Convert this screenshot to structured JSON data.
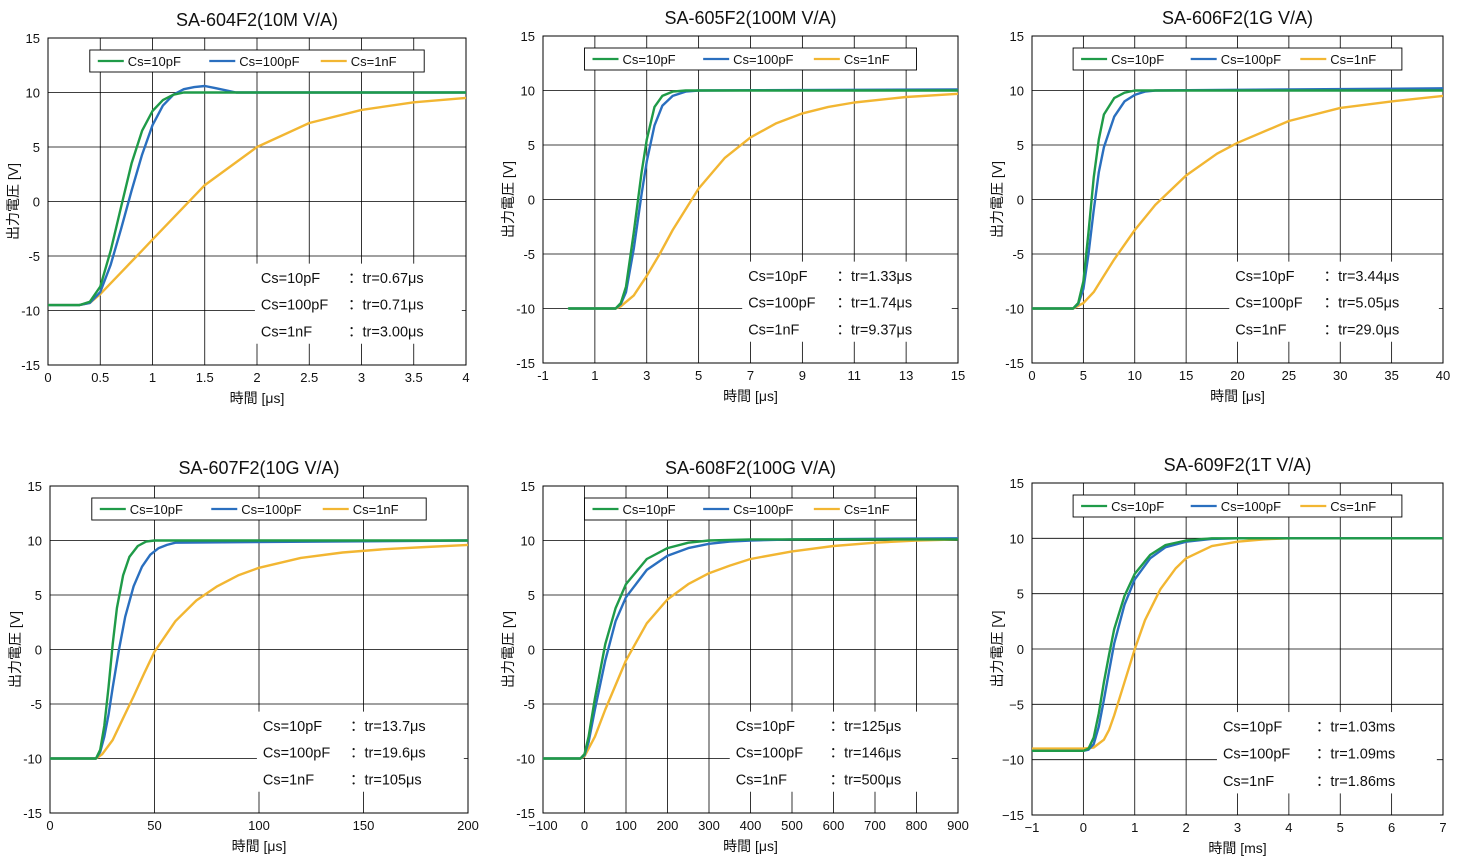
{
  "colors": {
    "cs10": "#1f9b48",
    "cs100": "#2a6fbf",
    "cs1n": "#f2b632",
    "grid": "#000000"
  },
  "ylabel": "出力電圧 [V]",
  "legend": [
    "Cs=10pF",
    "Cs=100pF",
    "Cs=1nF"
  ],
  "charts": [
    {
      "id": "sa604",
      "title": "SA-604F2(10M V/A)",
      "xlabel": "時間 [μs]",
      "xlim": [
        0,
        4
      ],
      "ylim": [
        -15,
        15
      ],
      "xticks": [
        0,
        0.5,
        1,
        1.5,
        2,
        2.5,
        3,
        3.5,
        4
      ],
      "xtick_labels": [
        "0",
        "0.5",
        "1",
        "1.5",
        "2",
        "2.5",
        "3",
        "3.5",
        "4"
      ],
      "yticks": [
        -15,
        -10,
        -5,
        0,
        5,
        10,
        15
      ],
      "ytick_labels": [
        "-15",
        "-10",
        "-5",
        "0",
        "5",
        "10",
        "15"
      ],
      "annotation_rows": [
        {
          "cs": "Cs=10pF",
          "tr": "：tr=0.67μs"
        },
        {
          "cs": "Cs=100pF",
          "tr": "：tr=0.71μs"
        },
        {
          "cs": "Cs=1nF",
          "tr": "：tr=3.00μs"
        }
      ],
      "series": [
        {
          "name": "Cs=10pF",
          "x": [
            0,
            0.3,
            0.4,
            0.5,
            0.6,
            0.7,
            0.8,
            0.9,
            1.0,
            1.1,
            1.2,
            1.3,
            1.5,
            2.0,
            4.0
          ],
          "y": [
            -9.5,
            -9.5,
            -9.2,
            -7.8,
            -4.5,
            -0.5,
            3.5,
            6.5,
            8.3,
            9.3,
            9.8,
            10.0,
            10.0,
            10.0,
            10.0
          ]
        },
        {
          "name": "Cs=100pF",
          "x": [
            0,
            0.3,
            0.4,
            0.5,
            0.6,
            0.7,
            0.8,
            0.9,
            1.0,
            1.1,
            1.2,
            1.3,
            1.4,
            1.5,
            1.6,
            1.7,
            1.8,
            2.0,
            4.0
          ],
          "y": [
            -9.5,
            -9.5,
            -9.3,
            -8.3,
            -5.8,
            -2.5,
            1.0,
            4.3,
            7.0,
            8.8,
            9.8,
            10.3,
            10.5,
            10.6,
            10.4,
            10.2,
            10.0,
            10.0,
            10.0
          ]
        },
        {
          "name": "Cs=1nF",
          "x": [
            0,
            0.3,
            0.4,
            0.5,
            0.7,
            0.9,
            1.0,
            1.2,
            1.5,
            2.0,
            2.5,
            3.0,
            3.5,
            4.0
          ],
          "y": [
            -9.5,
            -9.5,
            -9.3,
            -8.5,
            -6.5,
            -4.5,
            -3.5,
            -1.5,
            1.5,
            5.0,
            7.2,
            8.4,
            9.1,
            9.5
          ]
        }
      ]
    },
    {
      "id": "sa605",
      "title": "SA-605F2(100M V/A)",
      "xlabel": "時間 [μs]",
      "xlim": [
        -1,
        15
      ],
      "ylim": [
        -15,
        15
      ],
      "xticks": [
        -1,
        1,
        3,
        5,
        7,
        9,
        11,
        13,
        15
      ],
      "xtick_labels": [
        "-1",
        "1",
        "3",
        "5",
        "7",
        "9",
        "11",
        "13",
        "15"
      ],
      "yticks": [
        -15,
        -10,
        -5,
        0,
        5,
        10,
        15
      ],
      "ytick_labels": [
        "-15",
        "-10",
        "-5",
        "0",
        "5",
        "10",
        "15"
      ],
      "annotation_rows": [
        {
          "cs": "Cs=10pF",
          "tr": "：tr=1.33μs"
        },
        {
          "cs": "Cs=100pF",
          "tr": "：tr=1.74μs"
        },
        {
          "cs": "Cs=1nF",
          "tr": "：tr=9.37μs"
        }
      ],
      "series": [
        {
          "name": "Cs=10pF",
          "x": [
            0,
            1.8,
            2.0,
            2.2,
            2.5,
            2.8,
            3.0,
            3.3,
            3.6,
            4.0,
            4.5,
            15
          ],
          "y": [
            -10,
            -10,
            -9.5,
            -8.0,
            -3.0,
            2.5,
            5.5,
            8.5,
            9.5,
            9.9,
            10.0,
            10.0
          ]
        },
        {
          "name": "Cs=100pF",
          "x": [
            0,
            1.8,
            2.0,
            2.2,
            2.5,
            2.8,
            3.0,
            3.3,
            3.6,
            4.0,
            4.5,
            5.0,
            15
          ],
          "y": [
            -10,
            -10,
            -9.6,
            -8.5,
            -4.5,
            0.5,
            3.5,
            6.8,
            8.6,
            9.5,
            9.9,
            10.0,
            10.1
          ]
        },
        {
          "name": "Cs=1nF",
          "x": [
            0,
            1.8,
            2.0,
            2.5,
            3.0,
            3.5,
            4.0,
            5.0,
            6.0,
            7.0,
            8.0,
            9.0,
            10.0,
            11.0,
            13.0,
            15.0
          ],
          "y": [
            -10,
            -10,
            -9.8,
            -8.8,
            -7.0,
            -5.0,
            -2.8,
            1.0,
            3.8,
            5.7,
            7.0,
            7.9,
            8.5,
            8.9,
            9.4,
            9.7
          ]
        }
      ]
    },
    {
      "id": "sa606",
      "title": "SA-606F2(1G V/A)",
      "xlabel": "時間 [μs]",
      "xlim": [
        0,
        40
      ],
      "ylim": [
        -15,
        15
      ],
      "xticks": [
        0,
        5,
        10,
        15,
        20,
        25,
        30,
        35,
        40
      ],
      "xtick_labels": [
        "0",
        "5",
        "10",
        "15",
        "20",
        "25",
        "30",
        "35",
        "40"
      ],
      "yticks": [
        -15,
        -10,
        -5,
        0,
        5,
        10,
        15
      ],
      "ytick_labels": [
        "-15",
        "-10",
        "-5",
        "0",
        "5",
        "10",
        "15"
      ],
      "annotation_rows": [
        {
          "cs": "Cs=10pF",
          "tr": "：tr=3.44μs"
        },
        {
          "cs": "Cs=100pF",
          "tr": "：tr=5.05μs"
        },
        {
          "cs": "Cs=1nF",
          "tr": "：tr=29.0μs"
        }
      ],
      "series": [
        {
          "name": "Cs=10pF",
          "x": [
            0,
            4.0,
            4.5,
            5.0,
            5.5,
            6.0,
            6.5,
            7.0,
            8.0,
            9.0,
            10.0,
            40
          ],
          "y": [
            -10,
            -10,
            -9.5,
            -7.5,
            -3.0,
            2.0,
            5.5,
            7.8,
            9.3,
            9.8,
            10.0,
            10.0
          ]
        },
        {
          "name": "Cs=100pF",
          "x": [
            0,
            4.0,
            4.5,
            5.0,
            5.5,
            6.0,
            6.5,
            7.0,
            8.0,
            9.0,
            10.0,
            11.0,
            12.0,
            40
          ],
          "y": [
            -10,
            -10,
            -9.6,
            -8.2,
            -5.0,
            -1.0,
            2.5,
            4.8,
            7.6,
            9.0,
            9.6,
            9.9,
            10.0,
            10.2
          ]
        },
        {
          "name": "Cs=1nF",
          "x": [
            0,
            4.0,
            5.0,
            6.0,
            7.0,
            8.0,
            10.0,
            12.0,
            15.0,
            18.0,
            20.0,
            25.0,
            30.0,
            35.0,
            40.0
          ],
          "y": [
            -10,
            -10,
            -9.5,
            -8.5,
            -7.0,
            -5.5,
            -2.8,
            -0.5,
            2.2,
            4.2,
            5.2,
            7.2,
            8.4,
            9.0,
            9.5
          ]
        }
      ]
    },
    {
      "id": "sa607",
      "title": "SA-607F2(10G V/A)",
      "xlabel": "時間 [μs]",
      "xlim": [
        0,
        200
      ],
      "ylim": [
        -15,
        15
      ],
      "xticks": [
        0,
        50,
        100,
        150,
        200
      ],
      "xtick_labels": [
        "0",
        "50",
        "100",
        "150",
        "200"
      ],
      "yticks": [
        -15,
        -10,
        -5,
        0,
        5,
        10,
        15
      ],
      "ytick_labels": [
        "-15",
        "-10",
        "-5",
        "0",
        "5",
        "10",
        "15"
      ],
      "annotation_rows": [
        {
          "cs": "Cs=10pF",
          "tr": "：tr=13.7μs"
        },
        {
          "cs": "Cs=100pF",
          "tr": "：tr=19.6μs"
        },
        {
          "cs": "Cs=1nF",
          "tr": "：tr=105μs"
        }
      ],
      "series": [
        {
          "name": "Cs=10pF",
          "x": [
            0,
            22,
            24,
            26,
            28,
            30,
            32,
            35,
            38,
            42,
            46,
            50,
            200
          ],
          "y": [
            -10,
            -10,
            -9.2,
            -7.0,
            -3.5,
            0.5,
            3.8,
            6.8,
            8.5,
            9.5,
            9.9,
            10.0,
            10.0
          ]
        },
        {
          "name": "Cs=100pF",
          "x": [
            0,
            22,
            24,
            26,
            28,
            30,
            33,
            36,
            40,
            44,
            48,
            52,
            56,
            60,
            200
          ],
          "y": [
            -10,
            -10,
            -9.4,
            -8.0,
            -6.0,
            -3.5,
            0.0,
            3.0,
            5.8,
            7.6,
            8.7,
            9.3,
            9.6,
            9.8,
            10.0
          ]
        },
        {
          "name": "Cs=1nF",
          "x": [
            0,
            22,
            25,
            30,
            35,
            40,
            45,
            50,
            60,
            70,
            80,
            90,
            100,
            120,
            140,
            160,
            180,
            200
          ],
          "y": [
            -10,
            -10,
            -9.6,
            -8.3,
            -6.3,
            -4.3,
            -2.2,
            -0.2,
            2.6,
            4.5,
            5.8,
            6.8,
            7.5,
            8.4,
            8.9,
            9.2,
            9.4,
            9.6
          ]
        }
      ]
    },
    {
      "id": "sa608",
      "title": "SA-608F2(100G V/A)",
      "xlabel": "時間 [μs]",
      "xlim": [
        -100,
        900
      ],
      "ylim": [
        -15,
        15
      ],
      "xticks": [
        -100,
        0,
        100,
        200,
        300,
        400,
        500,
        600,
        700,
        800,
        900
      ],
      "xtick_labels": [
        "−100",
        "0",
        "100",
        "200",
        "300",
        "400",
        "500",
        "600",
        "700",
        "800",
        "900"
      ],
      "yticks": [
        -15,
        -10,
        -5,
        0,
        5,
        10,
        15
      ],
      "ytick_labels": [
        "-15",
        "-10",
        "-5",
        "0",
        "5",
        "10",
        "15"
      ],
      "annotation_rows": [
        {
          "cs": "Cs=10pF",
          "tr": "：tr=125μs"
        },
        {
          "cs": "Cs=100pF",
          "tr": "：tr=146μs"
        },
        {
          "cs": "Cs=1nF",
          "tr": "：tr=500μs"
        }
      ],
      "series": [
        {
          "name": "Cs=10pF",
          "x": [
            -100,
            -10,
            0,
            10,
            25,
            50,
            75,
            100,
            150,
            200,
            250,
            300,
            400,
            900
          ],
          "y": [
            -10,
            -10,
            -9.6,
            -8.0,
            -4.5,
            0.5,
            3.8,
            6.0,
            8.3,
            9.3,
            9.8,
            10.0,
            10.1,
            10.1
          ]
        },
        {
          "name": "Cs=100pF",
          "x": [
            -100,
            -10,
            0,
            10,
            25,
            50,
            75,
            100,
            150,
            200,
            250,
            300,
            350,
            400,
            500,
            900
          ],
          "y": [
            -10,
            -10,
            -9.7,
            -8.5,
            -5.5,
            -1.0,
            2.6,
            4.8,
            7.3,
            8.6,
            9.3,
            9.7,
            9.9,
            10.0,
            10.1,
            10.2
          ]
        },
        {
          "name": "Cs=1nF",
          "x": [
            -100,
            -10,
            0,
            25,
            50,
            100,
            150,
            200,
            250,
            300,
            350,
            400,
            500,
            600,
            700,
            800,
            900
          ],
          "y": [
            -10,
            -10,
            -9.8,
            -8.0,
            -5.5,
            -1.0,
            2.4,
            4.6,
            6.0,
            7.0,
            7.7,
            8.3,
            9.0,
            9.5,
            9.8,
            10.0,
            10.1
          ]
        }
      ]
    },
    {
      "id": "sa609",
      "title": "SA-609F2(1T V/A)",
      "xlabel": "時間 [ms]",
      "xlim": [
        -1,
        7
      ],
      "ylim": [
        -15,
        15
      ],
      "xticks": [
        -1,
        0,
        1,
        2,
        3,
        4,
        5,
        6,
        7
      ],
      "xtick_labels": [
        "−1",
        "0",
        "1",
        "2",
        "3",
        "4",
        "5",
        "6",
        "7"
      ],
      "yticks": [
        -15,
        -10,
        -5,
        0,
        5,
        10,
        15
      ],
      "ytick_labels": [
        "−15",
        "−10",
        "−5",
        "0",
        "5",
        "10",
        "15"
      ],
      "annotation_rows": [
        {
          "cs": "Cs=10pF",
          "tr": "：tr=1.03ms"
        },
        {
          "cs": "Cs=100pF",
          "tr": "：tr=1.09ms"
        },
        {
          "cs": "Cs=1nF",
          "tr": "：tr=1.86ms"
        }
      ],
      "series": [
        {
          "name": "Cs=10pF",
          "x": [
            -1,
            -0.8,
            0,
            0.1,
            0.2,
            0.3,
            0.4,
            0.5,
            0.6,
            0.8,
            1.0,
            1.3,
            1.6,
            2.0,
            2.5,
            3.0,
            7.0
          ],
          "y": [
            -9.2,
            -9.2,
            -9.2,
            -9.0,
            -8.0,
            -5.8,
            -3.0,
            -0.5,
            1.8,
            4.8,
            6.8,
            8.5,
            9.4,
            9.8,
            10.0,
            10.0,
            10.0
          ]
        },
        {
          "name": "Cs=100pF",
          "x": [
            -1,
            -0.8,
            0,
            0.1,
            0.2,
            0.3,
            0.4,
            0.5,
            0.6,
            0.8,
            1.0,
            1.3,
            1.6,
            2.0,
            2.5,
            3.0,
            7.0
          ],
          "y": [
            -9.2,
            -9.2,
            -9.2,
            -9.1,
            -8.6,
            -7.0,
            -4.6,
            -2.0,
            0.5,
            4.0,
            6.3,
            8.2,
            9.2,
            9.7,
            9.95,
            10.0,
            10.0
          ]
        },
        {
          "name": "Cs=1nF",
          "x": [
            -1,
            -0.8,
            0,
            0.2,
            0.4,
            0.5,
            0.6,
            0.8,
            1.0,
            1.2,
            1.5,
            1.8,
            2.0,
            2.5,
            3.0,
            3.5,
            4.0,
            7.0
          ],
          "y": [
            -9.0,
            -9.0,
            -9.0,
            -8.9,
            -8.2,
            -7.3,
            -6.0,
            -3.0,
            0.0,
            2.6,
            5.4,
            7.3,
            8.2,
            9.3,
            9.7,
            9.9,
            10.0,
            10.0
          ]
        }
      ]
    }
  ]
}
